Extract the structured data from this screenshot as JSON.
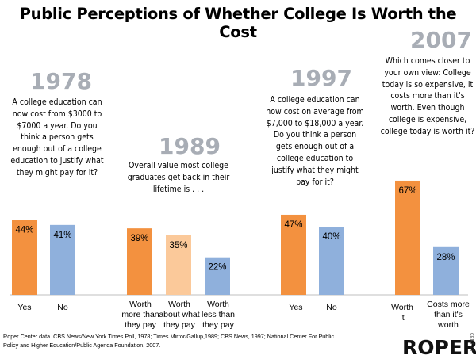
{
  "title": "Public Perceptions of Whether College Is Worth the Cost",
  "chart_data": [
    {
      "type": "bar",
      "year": "1978",
      "question": "A college education can now cost from $3000 to $7000 a year. Do you think a person gets enough out of a college education to justify what they might pay for it?",
      "categories": [
        "Yes",
        "No"
      ],
      "values": [
        44,
        41
      ],
      "labels": [
        "44%",
        "41%"
      ],
      "colors": [
        "#f3913f",
        "#8fb0dc"
      ]
    },
    {
      "type": "bar",
      "year": "1989",
      "question": "Overall value most college graduates get back in their lifetime is . . .",
      "categories": [
        "Worth more than they pay",
        "Worth about what they pay",
        "Worth less than they pay"
      ],
      "values": [
        39,
        35,
        22
      ],
      "labels": [
        "39%",
        "35%",
        "22%"
      ],
      "colors": [
        "#f3913f",
        "#fbc99a",
        "#8fb0dc"
      ]
    },
    {
      "type": "bar",
      "year": "1997",
      "question": "A college education can now cost on average from $7,000 to $18,000 a year. Do you think a person gets enough out of a college education to justify what they might pay for it?",
      "categories": [
        "Yes",
        "No"
      ],
      "values": [
        47,
        40
      ],
      "labels": [
        "47%",
        "40%"
      ],
      "colors": [
        "#f3913f",
        "#8fb0dc"
      ]
    },
    {
      "type": "bar",
      "year": "2007",
      "question": "Which comes closer to your own view: College today is so expensive, it costs more than it's worth. Even though college is expensive, college today is worth it?",
      "categories": [
        "Worth it",
        "Costs more than it's worth"
      ],
      "values": [
        67,
        28
      ],
      "labels": [
        "67%",
        "28%"
      ],
      "colors": [
        "#f3913f",
        "#8fb0dc"
      ]
    }
  ],
  "source": "Roper Center data. CBS News/New York Times Poll, 1978; Times Mirror/Gallup,1989; CBS News, 1997; National Center For Public Policy and Higher Education/Public Agenda Foundation, 2007.",
  "logo": "ROPER",
  "logo_sub": "CENTER"
}
